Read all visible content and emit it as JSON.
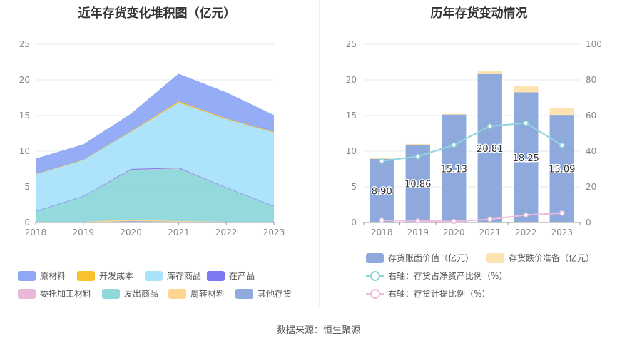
{
  "left_chart": {
    "title": "近年存货变化堆积图（亿元）"
  },
  "right_chart": {
    "title": "历年存货变动情况"
  },
  "source": "数据来源：恒生聚源",
  "chart_data": [
    {
      "type": "area",
      "title": "近年存货变化堆积图（亿元）",
      "stacked": true,
      "categories": [
        "2018",
        "2019",
        "2020",
        "2021",
        "2022",
        "2023"
      ],
      "ylim": [
        0,
        25
      ],
      "yticks": [
        0,
        5,
        10,
        15,
        20,
        25
      ],
      "legend_position": "bottom",
      "series": [
        {
          "name": "其他存货",
          "color": "#8faadc",
          "values": [
            0.0,
            0.0,
            0.2,
            0.1,
            0.0,
            0.0
          ]
        },
        {
          "name": "周转材料",
          "color": "#ffd591",
          "values": [
            0.1,
            0.1,
            0.2,
            0.1,
            0.1,
            0.0
          ]
        },
        {
          "name": "发出商品",
          "color": "#8ed7da",
          "values": [
            1.5,
            3.6,
            7.0,
            7.4,
            4.8,
            2.3
          ]
        },
        {
          "name": "委托加工材料",
          "color": "#e8b7d9",
          "values": [
            0.0,
            0.0,
            0.0,
            0.0,
            0.0,
            0.0
          ]
        },
        {
          "name": "在产品",
          "color": "#7b78f2",
          "values": [
            0.0,
            0.0,
            0.1,
            0.1,
            0.0,
            0.0
          ]
        },
        {
          "name": "库存商品",
          "color": "#a9e2fb",
          "values": [
            5.2,
            5.1,
            5.2,
            9.1,
            9.6,
            10.3
          ]
        },
        {
          "name": "开发成本",
          "color": "#fbc02d",
          "values": [
            0.0,
            0.0,
            0.1,
            0.2,
            0.1,
            0.1
          ]
        },
        {
          "name": "原材料",
          "color": "#8fa8f5",
          "values": [
            2.1,
            2.1,
            2.4,
            3.8,
            3.6,
            2.3
          ]
        }
      ],
      "legend_order": [
        "原材料",
        "开发成本",
        "库存商品",
        "在产品",
        "委托加工材料",
        "发出商品",
        "周转材料",
        "其他存货"
      ]
    },
    {
      "type": "bar",
      "title": "历年存货变动情况",
      "stacked": true,
      "categories": [
        "2018",
        "2019",
        "2020",
        "2021",
        "2022",
        "2023"
      ],
      "ylim": [
        0,
        25
      ],
      "yticks": [
        0,
        5,
        10,
        15,
        20,
        25
      ],
      "y2lim": [
        0,
        100
      ],
      "y2ticks": [
        0,
        20,
        40,
        60,
        80,
        100
      ],
      "legend_position": "bottom",
      "series": [
        {
          "name": "存货账面价值（亿元）",
          "type": "bar",
          "color": "#8eaadc",
          "values": [
            8.9,
            10.86,
            15.13,
            20.81,
            18.25,
            15.09
          ],
          "labels": [
            "8.90",
            "10.86",
            "15.13",
            "20.81",
            "18.25",
            "15.09"
          ]
        },
        {
          "name": "存货跌价准备（亿元）",
          "type": "bar",
          "color": "#fde3b0",
          "values": [
            0.15,
            0.15,
            0.12,
            0.45,
            0.85,
            0.95
          ]
        },
        {
          "name": "右轴：存货占净资产比例（%）",
          "type": "line",
          "axis": "right",
          "color": "#8ed7da",
          "values": [
            34.5,
            37.0,
            43.5,
            54.0,
            55.8,
            43.3
          ]
        },
        {
          "name": "右轴：存货计提比例（%）",
          "type": "line",
          "axis": "right",
          "color": "#eebbdd",
          "values": [
            1.2,
            0.9,
            0.6,
            1.8,
            4.2,
            5.3
          ]
        }
      ]
    }
  ]
}
